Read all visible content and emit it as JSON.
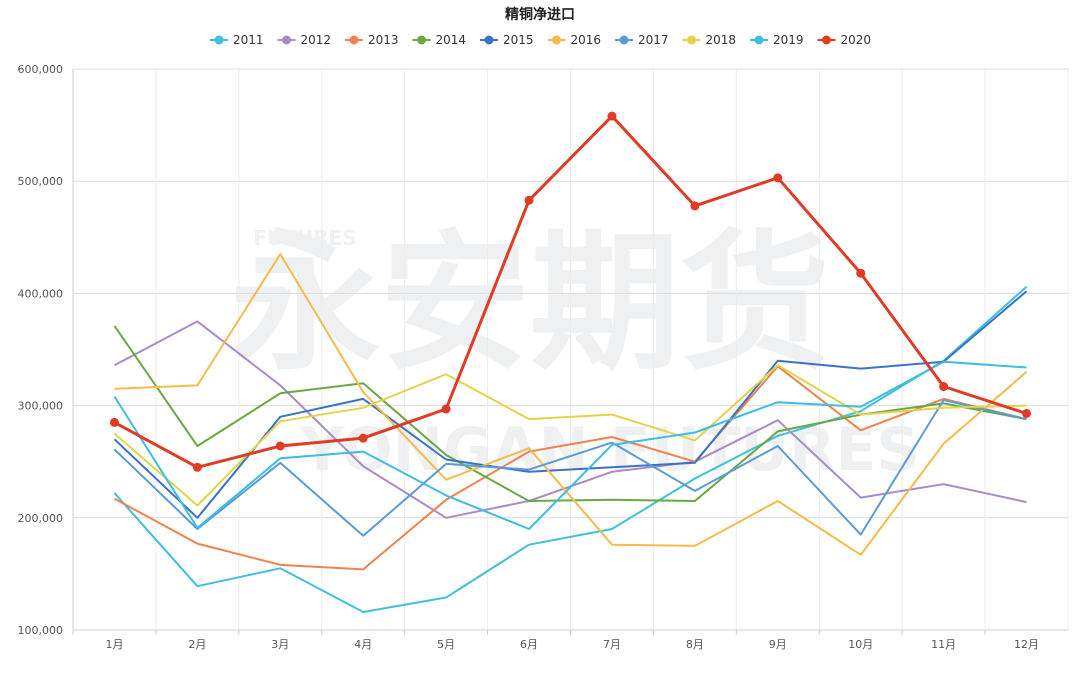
{
  "chart_data": {
    "type": "line",
    "title": "精铜净进口",
    "xlabel": "",
    "ylabel": "",
    "categories": [
      "1月",
      "2月",
      "3月",
      "4月",
      "5月",
      "6月",
      "7月",
      "8月",
      "9月",
      "10月",
      "11月",
      "12月"
    ],
    "ylim": [
      100000,
      600000
    ],
    "yticks": [
      100000,
      200000,
      300000,
      400000,
      500000,
      600000
    ],
    "ytick_labels": [
      "100,000",
      "200,000",
      "300,000",
      "400,000",
      "500,000",
      "600,000"
    ],
    "grid": true,
    "legend_position": "top",
    "watermark": {
      "main": "永安期货",
      "sub": "FUTURES",
      "sub2": "YONGAN FUTURES"
    },
    "series": [
      {
        "name": "2011",
        "color": "#3fbfdf",
        "values": [
          222000,
          139000,
          155000,
          116000,
          129000,
          176000,
          190000,
          235000,
          273000,
          295000,
          340000,
          406000
        ]
      },
      {
        "name": "2012",
        "color": "#a98bc9",
        "values": [
          336000,
          375000,
          318000,
          246000,
          200000,
          215000,
          241000,
          250000,
          287000,
          218000,
          230000,
          214000
        ]
      },
      {
        "name": "2013",
        "color": "#f0834d",
        "values": [
          217000,
          177000,
          158000,
          154000,
          216000,
          259000,
          272000,
          250000,
          335000,
          278000,
          306000,
          288000
        ]
      },
      {
        "name": "2014",
        "color": "#6aa845",
        "values": [
          371000,
          264000,
          311000,
          320000,
          256000,
          215000,
          216000,
          215000,
          277000,
          292000,
          302000,
          288000
        ]
      },
      {
        "name": "2015",
        "color": "#3a72c7",
        "values": [
          270000,
          200000,
          290000,
          306000,
          252000,
          241000,
          245000,
          249000,
          340000,
          333000,
          339000,
          402000
        ]
      },
      {
        "name": "2016",
        "color": "#f5bb4b",
        "values": [
          315000,
          318000,
          435000,
          312000,
          234000,
          262000,
          176000,
          175000,
          215000,
          167000,
          266000,
          330000
        ]
      },
      {
        "name": "2017",
        "color": "#5b9bd5",
        "values": [
          261000,
          190000,
          249000,
          184000,
          248000,
          243000,
          267000,
          224000,
          264000,
          185000,
          305000,
          288000
        ]
      },
      {
        "name": "2018",
        "color": "#e1d44a",
        "values": [
          275000,
          211000,
          286000,
          298000,
          328000,
          288000,
          292000,
          269000,
          336000,
          292000,
          298000,
          300000
        ]
      },
      {
        "name": "2019",
        "color": "#3dbde3",
        "values": [
          308000,
          191000,
          253000,
          259000,
          220000,
          190000,
          265000,
          276000,
          303000,
          299000,
          339000,
          334000
        ]
      },
      {
        "name": "2020",
        "color": "#e03b24",
        "values": [
          285000,
          245000,
          264000,
          271000,
          297000,
          483000,
          558000,
          478000,
          503000,
          418000,
          317000,
          293000
        ],
        "markers": true
      }
    ]
  }
}
